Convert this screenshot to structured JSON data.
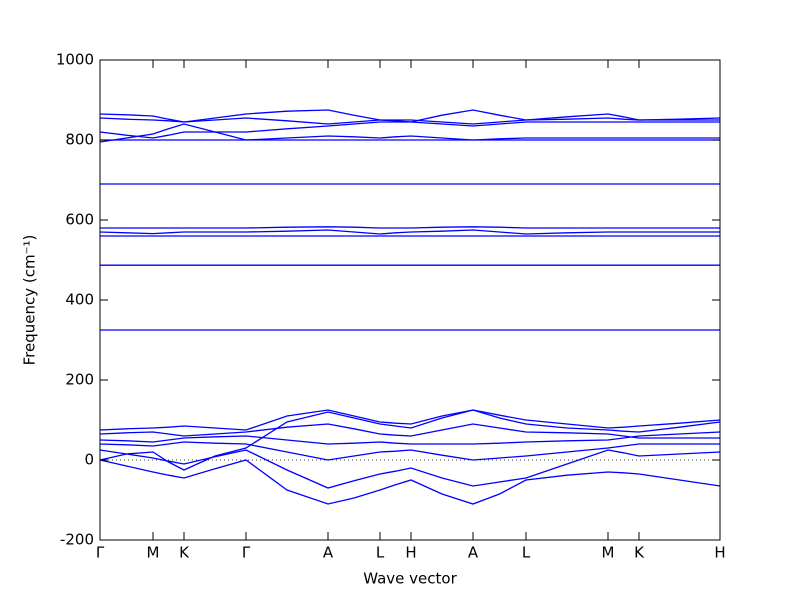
{
  "chart_data": {
    "type": "line",
    "x_label": "Wave vector",
    "y_label": "Frequency (cm⁻¹)",
    "color": "#0000ff",
    "zero_line": true,
    "xlim": [
      0,
      6.2
    ],
    "xticks": [
      {
        "value": 0,
        "label": "Γ"
      },
      {
        "value": 0.53,
        "label": "M"
      },
      {
        "value": 0.84,
        "label": "K"
      },
      {
        "value": 1.46,
        "label": "Γ"
      },
      {
        "value": 2.28,
        "label": "A"
      },
      {
        "value": 2.8,
        "label": "L"
      },
      {
        "value": 3.11,
        "label": "H"
      },
      {
        "value": 3.73,
        "label": "A"
      },
      {
        "value": 4.26,
        "label": "L"
      },
      {
        "value": 5.08,
        "label": "M"
      },
      {
        "value": 5.39,
        "label": "K"
      },
      {
        "value": 6.2,
        "label": "H"
      }
    ],
    "ylim": [
      -200,
      1000
    ],
    "yticks": [
      -200,
      0,
      200,
      400,
      600,
      800,
      1000
    ],
    "x": [
      0,
      0.265,
      0.53,
      0.685,
      0.84,
      1.15,
      1.46,
      1.87,
      2.28,
      2.54,
      2.8,
      2.955,
      3.11,
      3.42,
      3.73,
      3.995,
      4.26,
      4.67,
      5.08,
      5.235,
      5.39,
      5.795,
      6.2
    ],
    "series": [
      {
        "values": [
          0,
          -15,
          -30,
          -38,
          -45,
          -22,
          0,
          -75,
          -110,
          -95,
          -75,
          -62,
          -50,
          -85,
          -110,
          -85,
          -50,
          -38,
          -30,
          -32,
          -35,
          -50,
          -65
        ]
      },
      {
        "values": [
          0,
          15,
          20,
          -5,
          -25,
          10,
          30,
          95,
          120,
          105,
          90,
          85,
          80,
          105,
          125,
          105,
          90,
          80,
          75,
          72,
          70,
          82,
          95
        ]
      },
      {
        "values": [
          75,
          78,
          80,
          82,
          85,
          80,
          75,
          110,
          125,
          110,
          95,
          92,
          90,
          110,
          125,
          112,
          100,
          90,
          80,
          82,
          85,
          92,
          100
        ]
      },
      {
        "values": [
          65,
          68,
          70,
          65,
          60,
          65,
          70,
          82,
          90,
          78,
          65,
          62,
          60,
          75,
          90,
          80,
          70,
          68,
          65,
          60,
          55,
          55,
          55
        ]
      },
      {
        "values": [
          50,
          48,
          45,
          50,
          55,
          58,
          60,
          50,
          40,
          42,
          45,
          42,
          40,
          40,
          40,
          42,
          45,
          48,
          50,
          55,
          60,
          65,
          70
        ]
      },
      {
        "values": [
          25,
          15,
          5,
          -3,
          -10,
          8,
          25,
          -25,
          -70,
          -52,
          -35,
          -28,
          -20,
          -45,
          -65,
          -55,
          -45,
          -10,
          25,
          18,
          10,
          15,
          20
        ]
      },
      {
        "values": [
          40,
          38,
          35,
          40,
          45,
          42,
          40,
          20,
          0,
          10,
          20,
          22,
          25,
          12,
          0,
          5,
          10,
          20,
          30,
          35,
          40,
          40,
          40
        ]
      },
      {
        "values": [
          325,
          325,
          325,
          325,
          325,
          325,
          325,
          325,
          325,
          325,
          325,
          325,
          325,
          325,
          325,
          325,
          325,
          325,
          325,
          325,
          325,
          325,
          325
        ]
      },
      {
        "values": [
          487,
          487,
          487,
          487,
          487,
          487,
          487,
          487,
          487,
          487,
          487,
          487,
          487,
          487,
          487,
          487,
          487,
          487,
          487,
          487,
          487,
          487,
          487
        ]
      },
      {
        "values": [
          560,
          560,
          560,
          560,
          560,
          560,
          560,
          560,
          560,
          560,
          560,
          560,
          560,
          560,
          560,
          560,
          560,
          560,
          560,
          560,
          560,
          560,
          560
        ]
      },
      {
        "values": [
          570,
          568,
          566,
          568,
          570,
          570,
          570,
          572,
          575,
          570,
          565,
          568,
          570,
          572,
          575,
          570,
          565,
          568,
          570,
          570,
          570,
          570,
          570
        ]
      },
      {
        "values": [
          580,
          580,
          580,
          580,
          580,
          580,
          580,
          582,
          583,
          582,
          580,
          580,
          580,
          582,
          583,
          582,
          580,
          580,
          580,
          580,
          580,
          580,
          580
        ]
      },
      {
        "values": [
          690,
          690,
          690,
          690,
          690,
          690,
          690,
          690,
          690,
          690,
          690,
          690,
          690,
          690,
          690,
          690,
          690,
          690,
          690,
          690,
          690,
          690,
          690
        ]
      },
      {
        "values": [
          795,
          805,
          815,
          828,
          840,
          820,
          800,
          805,
          810,
          808,
          805,
          808,
          810,
          805,
          800,
          803,
          805,
          805,
          805,
          805,
          805,
          805,
          805
        ]
      },
      {
        "values": [
          800,
          800,
          800,
          800,
          800,
          800,
          800,
          800,
          800,
          800,
          800,
          800,
          800,
          800,
          800,
          800,
          800,
          800,
          800,
          800,
          800,
          800,
          800
        ]
      },
      {
        "values": [
          820,
          812,
          805,
          812,
          820,
          820,
          820,
          828,
          835,
          840,
          845,
          845,
          845,
          840,
          835,
          840,
          845,
          845,
          845,
          845,
          845,
          845,
          845
        ]
      },
      {
        "values": [
          855,
          852,
          850,
          848,
          845,
          850,
          855,
          848,
          840,
          845,
          850,
          850,
          850,
          845,
          840,
          845,
          850,
          852,
          855,
          852,
          850,
          852,
          855
        ]
      },
      {
        "values": [
          865,
          863,
          860,
          852,
          845,
          855,
          865,
          872,
          875,
          862,
          850,
          848,
          845,
          862,
          875,
          862,
          850,
          858,
          865,
          858,
          850,
          850,
          850
        ]
      }
    ]
  }
}
